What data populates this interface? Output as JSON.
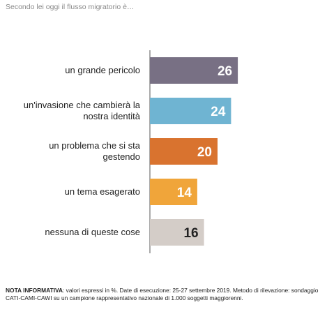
{
  "question": "Secondo lei oggi il flusso migratorio è…",
  "chart_data": {
    "type": "bar",
    "orientation": "horizontal",
    "categories": [
      "un grande pericolo",
      "un'invasione che cambierà la nostra identità",
      "un problema che si sta gestendo",
      "un tema esagerato",
      "nessuna di queste cose"
    ],
    "category_lines": [
      [
        "un grande pericolo"
      ],
      [
        "un'invasione che cambierà la",
        "nostra identità"
      ],
      [
        "un problema che si sta",
        "gestendo"
      ],
      [
        "un tema esagerato"
      ],
      [
        "nessuna di queste cose"
      ]
    ],
    "values": [
      26,
      24,
      20,
      14,
      16
    ],
    "value_labels": [
      "26",
      "24",
      "20",
      "14",
      "16"
    ],
    "colors": [
      "#787084",
      "#6fb4d2",
      "#d9732f",
      "#f0a53a",
      "#d4cdc8"
    ],
    "label_colors": [
      "#ffffff",
      "#ffffff",
      "#ffffff",
      "#ffffff",
      "#222222"
    ],
    "unit": "%"
  },
  "note": {
    "bold": "NOTA INFORMATIVA",
    "text": ": valori espressi in %. Date di esecuzione: 25-27 settembre 2019. Metodo di rilevazione: sondaggio CATI-CAMI-CAWI su un campione rappresentativo nazionale di 1.000 soggetti maggiorenni."
  }
}
